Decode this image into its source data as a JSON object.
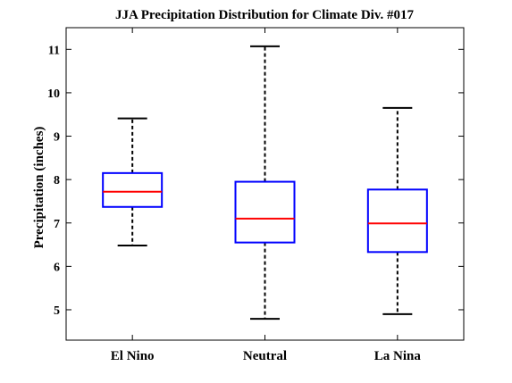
{
  "chart_data": {
    "type": "box",
    "title": "JJA Precipitation Distribution for Climate Div. #017",
    "xlabel": "",
    "ylabel": "Precipitation (inches)",
    "ylim": [
      4.3,
      11.5
    ],
    "yticks": [
      5,
      6,
      7,
      8,
      9,
      10,
      11
    ],
    "grid": false,
    "categories": [
      "El Nino",
      "Neutral",
      "La Nina"
    ],
    "boxes": [
      {
        "category": "El Nino",
        "whisker_low": 6.48,
        "q1": 7.37,
        "median": 7.72,
        "q3": 8.15,
        "whisker_high": 9.41
      },
      {
        "category": "Neutral",
        "whisker_low": 4.79,
        "q1": 6.55,
        "median": 7.1,
        "q3": 7.95,
        "whisker_high": 11.07
      },
      {
        "category": "La Nina",
        "whisker_low": 4.9,
        "q1": 6.33,
        "median": 6.99,
        "q3": 7.77,
        "whisker_high": 9.65
      }
    ],
    "colors": {
      "box": "#0000ff",
      "median": "#ff0000",
      "whisker": "#000000",
      "axes": "#000000"
    }
  }
}
